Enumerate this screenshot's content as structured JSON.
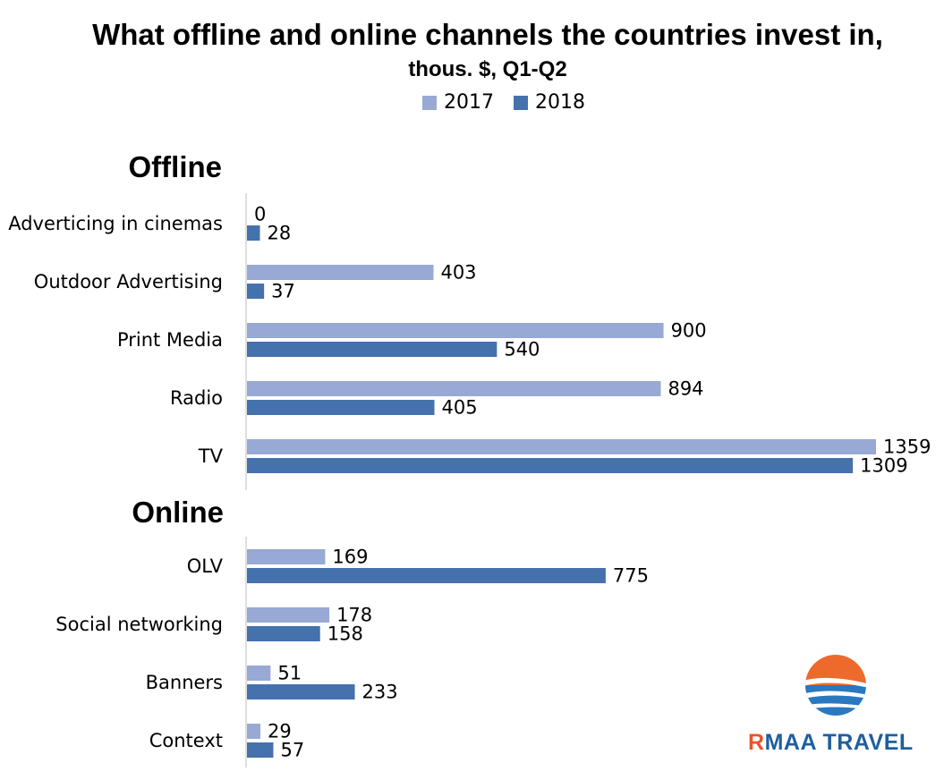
{
  "chart_data": {
    "type": "bar",
    "orientation": "horizontal",
    "title": "What offline and online channels the countries invest in,",
    "subtitle": "thous. $, Q1-Q2",
    "legend": [
      "2017",
      "2018"
    ],
    "colors": {
      "2017": "#97a9d4",
      "2018": "#4571ad"
    },
    "groups": [
      {
        "name": "Offline",
        "categories": [
          "Adverticing in cinemas",
          "Outdoor Advertising",
          "Print Media",
          "Radio",
          "TV"
        ],
        "series": [
          {
            "name": "2017",
            "values": [
              0,
              403,
              900,
              894,
              1359
            ]
          },
          {
            "name": "2018",
            "values": [
              28,
              37,
              540,
              405,
              1309
            ]
          }
        ]
      },
      {
        "name": "Online",
        "categories": [
          "OLV",
          "Social networking",
          "Banners",
          "Context"
        ],
        "series": [
          {
            "name": "2017",
            "values": [
              169,
              178,
              51,
              29
            ]
          },
          {
            "name": "2018",
            "values": [
              775,
              158,
              233,
              57
            ]
          }
        ]
      }
    ],
    "xlim": [
      0,
      1359
    ],
    "grid": false
  },
  "logo": {
    "text_prefix": "R",
    "text_rest": "MAA TRAVEL"
  }
}
